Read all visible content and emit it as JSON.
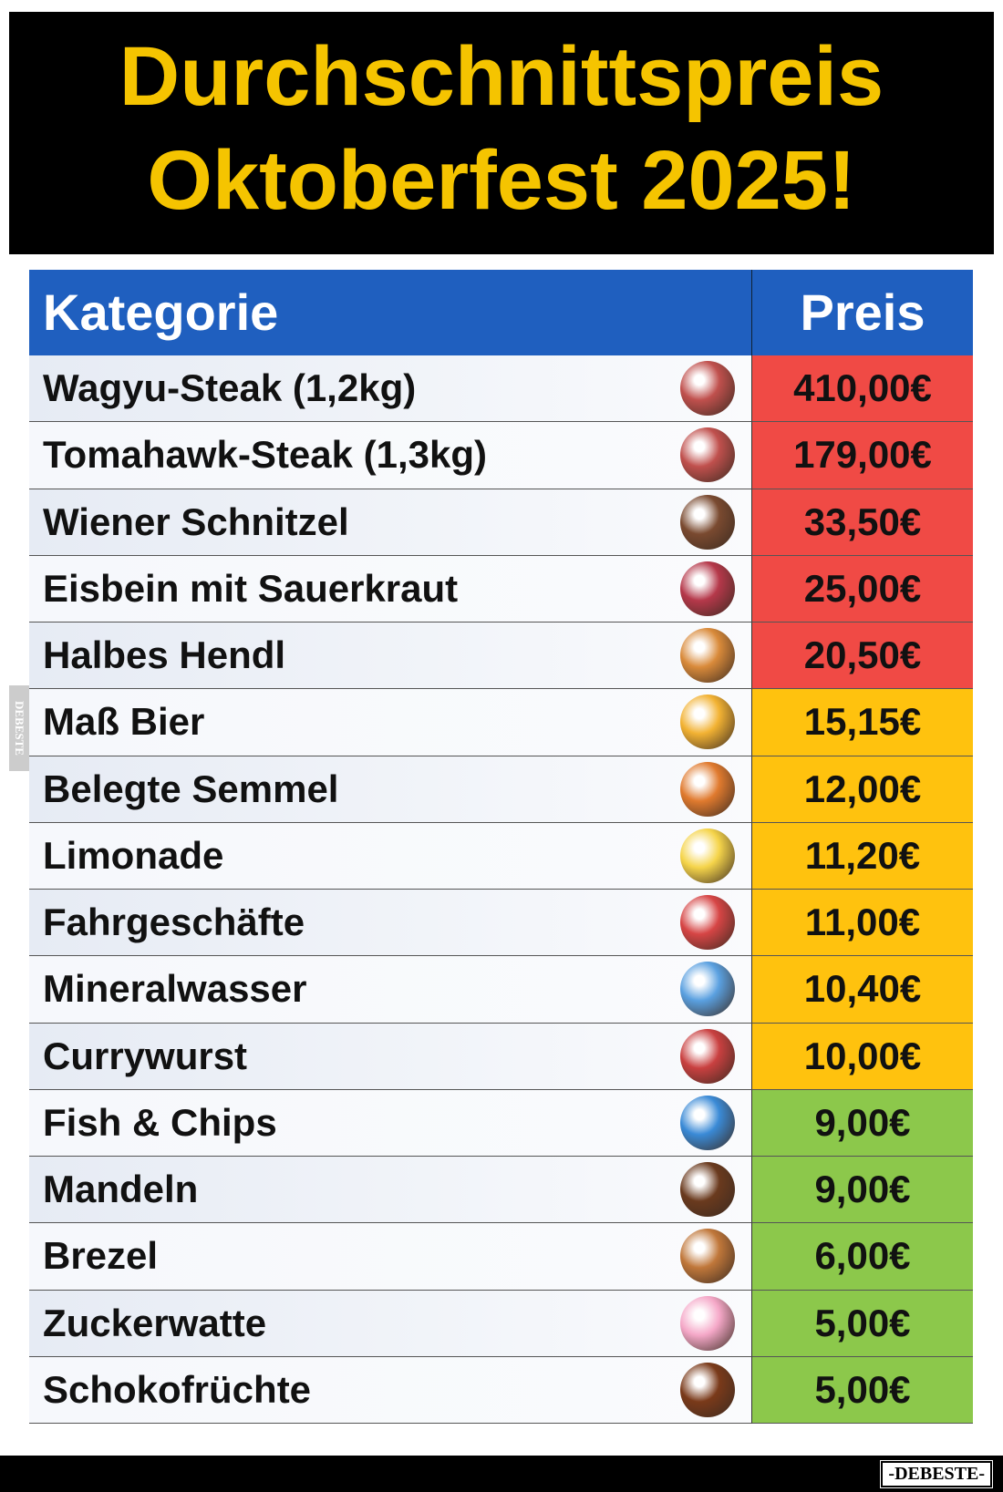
{
  "header": {
    "title_lines": [
      "Durchschnittspreis",
      "Oktoberfest 2025!"
    ]
  },
  "table": {
    "columns": [
      "Kategorie",
      "Preis"
    ],
    "rows": [
      {
        "name": "Wagyu-Steak (1,2kg)",
        "price": "410,00€",
        "color": "#f04a45"
      },
      {
        "name": "Tomahawk-Steak (1,3kg)",
        "price": "179,00€",
        "color": "#f04a45"
      },
      {
        "name": "Wiener Schnitzel",
        "price": "33,50€",
        "color": "#f04a45"
      },
      {
        "name": "Eisbein mit Sauerkraut",
        "price": "25,00€",
        "color": "#f04a45"
      },
      {
        "name": "Halbes Hendl",
        "price": "20,50€",
        "color": "#f04a45"
      },
      {
        "name": "Maß Bier",
        "price": "15,15€",
        "color": "#ffc20e"
      },
      {
        "name": "Belegte Semmel",
        "price": "12,00€",
        "color": "#ffc20e"
      },
      {
        "name": "Limonade",
        "price": "11,20€",
        "color": "#ffc20e"
      },
      {
        "name": "Fahrgeschäfte",
        "price": "11,00€",
        "color": "#ffc20e"
      },
      {
        "name": "Mineralwasser",
        "price": "10,40€",
        "color": "#ffc20e"
      },
      {
        "name": "Currywurst",
        "price": "10,00€",
        "color": "#ffc20e"
      },
      {
        "name": "Fish & Chips",
        "price": "9,00€",
        "color": "#8cc84b"
      },
      {
        "name": "Mandeln",
        "price": "9,00€",
        "color": "#8cc84b"
      },
      {
        "name": "Brezel",
        "price": "6,00€",
        "color": "#8cc84b"
      },
      {
        "name": "Zuckerwatte",
        "price": "5,00€",
        "color": "#8cc84b"
      },
      {
        "name": "Schokofrüchte",
        "price": "5,00€",
        "color": "#8cc84b"
      }
    ]
  },
  "watermark": {
    "side": "DEBESTE",
    "bottom": "-DEBESTE-"
  }
}
